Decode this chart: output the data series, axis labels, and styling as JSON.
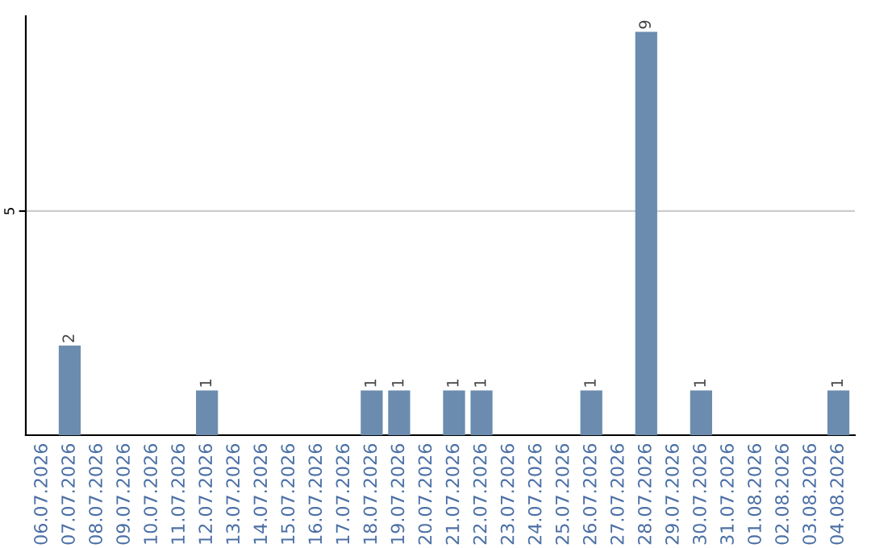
{
  "chart_data": {
    "type": "bar",
    "categories": [
      "06.07.2026",
      "07.07.2026",
      "08.07.2026",
      "09.07.2026",
      "10.07.2026",
      "11.07.2026",
      "12.07.2026",
      "13.07.2026",
      "14.07.2026",
      "15.07.2026",
      "16.07.2026",
      "17.07.2026",
      "18.07.2026",
      "19.07.2026",
      "20.07.2026",
      "21.07.2026",
      "22.07.2026",
      "23.07.2026",
      "24.07.2026",
      "25.07.2026",
      "26.07.2026",
      "27.07.2026",
      "28.07.2026",
      "29.07.2026",
      "30.07.2026",
      "31.07.2026",
      "01.08.2026",
      "02.08.2026",
      "03.08.2026",
      "04.08.2026"
    ],
    "values": [
      0,
      2,
      0,
      0,
      0,
      0,
      1,
      0,
      0,
      0,
      0,
      0,
      1,
      1,
      0,
      1,
      1,
      0,
      0,
      0,
      1,
      0,
      9,
      0,
      1,
      0,
      0,
      0,
      0,
      1
    ],
    "value_labels": [
      null,
      "2",
      null,
      null,
      null,
      null,
      "1",
      null,
      null,
      null,
      null,
      null,
      "1",
      "1",
      null,
      "1",
      "1",
      null,
      null,
      null,
      "1",
      null,
      "9",
      null,
      "1",
      null,
      null,
      null,
      null,
      "1"
    ],
    "color": "#6b8cae",
    "ylim": [
      0,
      9.35
    ],
    "yticks": [
      5
    ],
    "grid": "y"
  }
}
